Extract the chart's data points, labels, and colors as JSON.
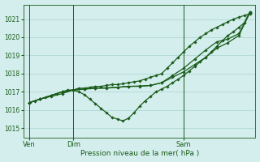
{
  "bg_color": "#d4eeed",
  "grid_color": "#a8d4d0",
  "line_color": "#1a5c1a",
  "xlabel": "Pression niveau de la mer( hPa )",
  "ylim": [
    1014.5,
    1021.8
  ],
  "yticks": [
    1015,
    1016,
    1017,
    1018,
    1019,
    1020,
    1021
  ],
  "xtick_labels": [
    "Ven",
    "Dim",
    "Sam"
  ],
  "xtick_positions": [
    0,
    16,
    56
  ],
  "xlim": [
    -2,
    82
  ],
  "vlines": [
    0,
    16,
    56
  ],
  "series": [
    {
      "x": [
        0,
        2,
        4,
        6,
        8,
        10,
        12,
        14,
        16,
        18,
        20,
        22,
        24,
        26,
        28,
        30,
        32,
        34,
        36,
        38,
        40,
        42,
        44,
        46,
        48,
        50,
        52,
        54,
        56,
        58,
        60,
        62,
        64,
        66,
        68,
        70,
        72,
        74,
        76,
        78,
        80
      ],
      "y": [
        1016.4,
        1016.5,
        1016.6,
        1016.7,
        1016.8,
        1016.9,
        1017.0,
        1017.1,
        1017.1,
        1017.2,
        1017.2,
        1017.25,
        1017.3,
        1017.3,
        1017.35,
        1017.4,
        1017.4,
        1017.45,
        1017.5,
        1017.55,
        1017.6,
        1017.7,
        1017.8,
        1017.9,
        1018.0,
        1018.3,
        1018.6,
        1018.9,
        1019.2,
        1019.5,
        1019.75,
        1020.0,
        1020.2,
        1020.4,
        1020.55,
        1020.7,
        1020.85,
        1021.0,
        1021.1,
        1021.2,
        1021.3
      ]
    },
    {
      "x": [
        0,
        4,
        8,
        12,
        16,
        18,
        20,
        22,
        24,
        26,
        28,
        30,
        32,
        34,
        36,
        38,
        40,
        42,
        44,
        46,
        48,
        50,
        52,
        54,
        56,
        58,
        60,
        62,
        64,
        66,
        68,
        70,
        72,
        74,
        76,
        78,
        80
      ],
      "y": [
        1016.4,
        1016.6,
        1016.8,
        1017.0,
        1017.1,
        1017.0,
        1016.85,
        1016.6,
        1016.35,
        1016.1,
        1015.85,
        1015.6,
        1015.5,
        1015.4,
        1015.55,
        1015.85,
        1016.2,
        1016.5,
        1016.75,
        1017.0,
        1017.15,
        1017.3,
        1017.5,
        1017.7,
        1017.9,
        1018.15,
        1018.4,
        1018.65,
        1018.9,
        1019.2,
        1019.5,
        1019.8,
        1020.1,
        1020.3,
        1020.55,
        1020.8,
        1021.4
      ]
    },
    {
      "x": [
        0,
        4,
        8,
        12,
        16,
        20,
        24,
        28,
        32,
        36,
        40,
        44,
        48,
        52,
        56,
        60,
        64,
        68,
        72,
        76,
        80
      ],
      "y": [
        1016.4,
        1016.6,
        1016.75,
        1016.9,
        1017.1,
        1017.15,
        1017.2,
        1017.2,
        1017.25,
        1017.3,
        1017.3,
        1017.35,
        1017.5,
        1017.8,
        1018.1,
        1018.5,
        1018.9,
        1019.4,
        1019.7,
        1020.1,
        1021.35
      ]
    },
    {
      "x": [
        0,
        4,
        8,
        12,
        16,
        20,
        24,
        28,
        32,
        36,
        40,
        44,
        48,
        52,
        56,
        60,
        64,
        68,
        72,
        76,
        80
      ],
      "y": [
        1016.4,
        1016.6,
        1016.8,
        1017.0,
        1017.1,
        1017.15,
        1017.2,
        1017.22,
        1017.25,
        1017.3,
        1017.32,
        1017.35,
        1017.5,
        1017.9,
        1018.3,
        1018.8,
        1019.3,
        1019.75,
        1019.9,
        1020.2,
        1021.4
      ]
    }
  ],
  "marker": "D",
  "markersize": 1.8,
  "linewidth": 0.9
}
